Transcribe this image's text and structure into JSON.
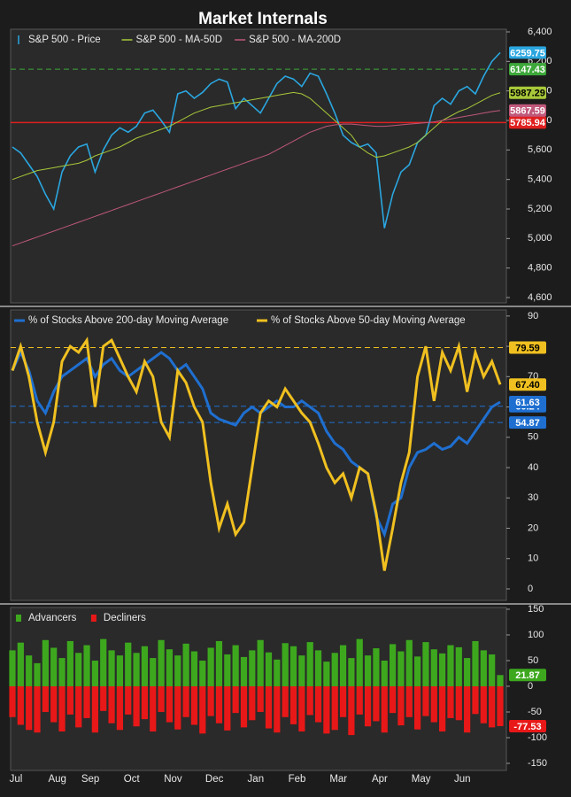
{
  "chart_data": [
    {
      "type": "line",
      "title": "Market Internals",
      "ylim": [
        4564,
        6418
      ],
      "yticks": [
        {
          "value": 4600,
          "label": "4,600"
        },
        {
          "value": 4800,
          "label": "4,800"
        },
        {
          "value": 5000,
          "label": "5,000"
        },
        {
          "value": 5200,
          "label": "5,200"
        },
        {
          "value": 5400,
          "label": "5,400"
        },
        {
          "value": 5600,
          "label": "5,600"
        },
        {
          "value": 5800,
          "label": "5,800"
        },
        {
          "value": 6000,
          "label": "6,000"
        },
        {
          "value": 6200,
          "label": "6,200"
        },
        {
          "value": 6400,
          "label": "6,400"
        }
      ],
      "series": [
        {
          "name": "S&P 500 - Price",
          "color": "#2aa6df",
          "values": [
            5620,
            5580,
            5500,
            5420,
            5300,
            5200,
            5450,
            5560,
            5620,
            5640,
            5450,
            5600,
            5700,
            5750,
            5720,
            5760,
            5850,
            5870,
            5800,
            5720,
            5980,
            6000,
            5950,
            5990,
            6050,
            6080,
            6060,
            5880,
            5950,
            5900,
            5850,
            5950,
            6050,
            6100,
            6080,
            6030,
            6120,
            6100,
            5980,
            5850,
            5700,
            5650,
            5620,
            5640,
            5580,
            5070,
            5300,
            5450,
            5500,
            5650,
            5700,
            5900,
            5950,
            5910,
            6000,
            6030,
            5980,
            6100,
            6200,
            6259.75
          ]
        },
        {
          "name": "S&P 500 - MA-50D",
          "color": "#a8c83a",
          "values": [
            5400,
            5420,
            5440,
            5460,
            5470,
            5480,
            5490,
            5500,
            5510,
            5530,
            5560,
            5580,
            5600,
            5620,
            5650,
            5680,
            5700,
            5720,
            5740,
            5760,
            5790,
            5820,
            5850,
            5870,
            5890,
            5900,
            5910,
            5920,
            5930,
            5940,
            5950,
            5960,
            5970,
            5980,
            5990,
            5980,
            5950,
            5900,
            5850,
            5800,
            5750,
            5700,
            5620,
            5580,
            5550,
            5560,
            5580,
            5600,
            5620,
            5650,
            5700,
            5750,
            5800,
            5830,
            5860,
            5880,
            5910,
            5940,
            5970,
            5987.29
          ]
        },
        {
          "name": "S&P 500 - MA-200D",
          "color": "#c0587a",
          "values": [
            4950,
            4970,
            4990,
            5010,
            5030,
            5050,
            5070,
            5090,
            5110,
            5130,
            5150,
            5170,
            5190,
            5210,
            5230,
            5250,
            5270,
            5290,
            5310,
            5330,
            5350,
            5370,
            5390,
            5410,
            5430,
            5450,
            5470,
            5490,
            5510,
            5530,
            5550,
            5570,
            5600,
            5630,
            5660,
            5690,
            5720,
            5740,
            5760,
            5770,
            5775,
            5775,
            5770,
            5765,
            5760,
            5760,
            5765,
            5770,
            5775,
            5780,
            5785,
            5790,
            5800,
            5810,
            5820,
            5830,
            5840,
            5850,
            5860,
            5867.59
          ]
        }
      ],
      "reference_lines": [
        {
          "value": 6147.43,
          "color": "#3da83a",
          "style": "dashed"
        },
        {
          "value": 5785.94,
          "color": "#e02020",
          "style": "solid"
        }
      ]
    },
    {
      "type": "line",
      "ylim": [
        -3.8,
        92
      ],
      "yticks": [
        0,
        10,
        20,
        30,
        40,
        50,
        60,
        70,
        80,
        90
      ],
      "series": [
        {
          "name": "% of Stocks Above 200-day Moving Average",
          "color": "#1f6fd0",
          "values": [
            72,
            78,
            72,
            62,
            58,
            65,
            70,
            72,
            74,
            76,
            70,
            74,
            76,
            72,
            70,
            72,
            74,
            76,
            78,
            76,
            72,
            74,
            70,
            66,
            58,
            56,
            55,
            54,
            58,
            60,
            58,
            60,
            62,
            60,
            60,
            62,
            60,
            58,
            52,
            48,
            46,
            42,
            40,
            38,
            24,
            18,
            28,
            30,
            40,
            45,
            46,
            48,
            46,
            47,
            50,
            48,
            52,
            56,
            60,
            61.63
          ]
        },
        {
          "name": "% of Stocks Above 50-day Moving Average",
          "color": "#f0c020",
          "last_value_label": "67.40",
          "values": [
            72,
            80,
            70,
            55,
            45,
            55,
            75,
            80,
            78,
            82,
            60,
            80,
            82,
            76,
            70,
            65,
            75,
            70,
            55,
            50,
            72,
            68,
            60,
            55,
            35,
            20,
            28,
            18,
            22,
            40,
            58,
            62,
            60,
            66,
            62,
            58,
            55,
            48,
            40,
            35,
            38,
            30,
            40,
            38,
            25,
            6,
            20,
            35,
            45,
            70,
            80,
            62,
            78,
            72,
            80,
            65,
            78,
            70,
            75,
            67.4
          ]
        }
      ],
      "reference_lines": [
        {
          "value": 79.59,
          "color": "#f0c020",
          "style": "dashed"
        },
        {
          "value": 60.24,
          "color": "#1f6fd0",
          "style": "dashed"
        },
        {
          "value": 54.87,
          "color": "#1f6fd0",
          "style": "dashed"
        }
      ]
    },
    {
      "type": "bar",
      "ylim": [
        -163.8,
        153.4
      ],
      "yticks": [
        150,
        100,
        50,
        0,
        -50,
        -100,
        -150
      ],
      "categories": [
        "Jul",
        null,
        null,
        null,
        null,
        "Aug",
        null,
        null,
        null,
        "Sep",
        null,
        null,
        null,
        null,
        "Oct",
        null,
        null,
        null,
        null,
        "Nov",
        null,
        null,
        null,
        null,
        "Dec",
        null,
        null,
        null,
        null,
        "Jan",
        null,
        null,
        null,
        null,
        "Feb",
        null,
        null,
        null,
        null,
        "Mar",
        null,
        null,
        null,
        null,
        "Apr",
        null,
        null,
        null,
        null,
        "May",
        null,
        null,
        null,
        null,
        "Jun",
        null,
        null,
        null,
        null,
        null
      ],
      "series": [
        {
          "name": "Advancers",
          "color": "#3da81e",
          "values": [
            70,
            85,
            60,
            45,
            90,
            75,
            55,
            88,
            65,
            80,
            50,
            92,
            70,
            60,
            85,
            65,
            78,
            55,
            90,
            72,
            60,
            83,
            68,
            50,
            75,
            88,
            62,
            80,
            57,
            70,
            90,
            66,
            52,
            84,
            78,
            60,
            86,
            70,
            48,
            65,
            80,
            55,
            92,
            60,
            74,
            50,
            82,
            68,
            90,
            58,
            86,
            72,
            64,
            80,
            76,
            55,
            88,
            70,
            62,
            21.87
          ]
        },
        {
          "name": "Decliners",
          "color": "#e81818",
          "values": [
            -60,
            -75,
            -85,
            -90,
            -50,
            -70,
            -88,
            -55,
            -80,
            -62,
            -90,
            -48,
            -72,
            -85,
            -55,
            -78,
            -64,
            -88,
            -50,
            -70,
            -84,
            -60,
            -75,
            -92,
            -58,
            -72,
            -86,
            -52,
            -80,
            -66,
            -50,
            -82,
            -90,
            -60,
            -74,
            -88,
            -56,
            -70,
            -92,
            -85,
            -60,
            -95,
            -55,
            -78,
            -68,
            -90,
            -52,
            -76,
            -60,
            -84,
            -58,
            -70,
            -88,
            -62,
            -66,
            -90,
            -54,
            -72,
            -80,
            -77.53
          ]
        }
      ]
    }
  ]
}
